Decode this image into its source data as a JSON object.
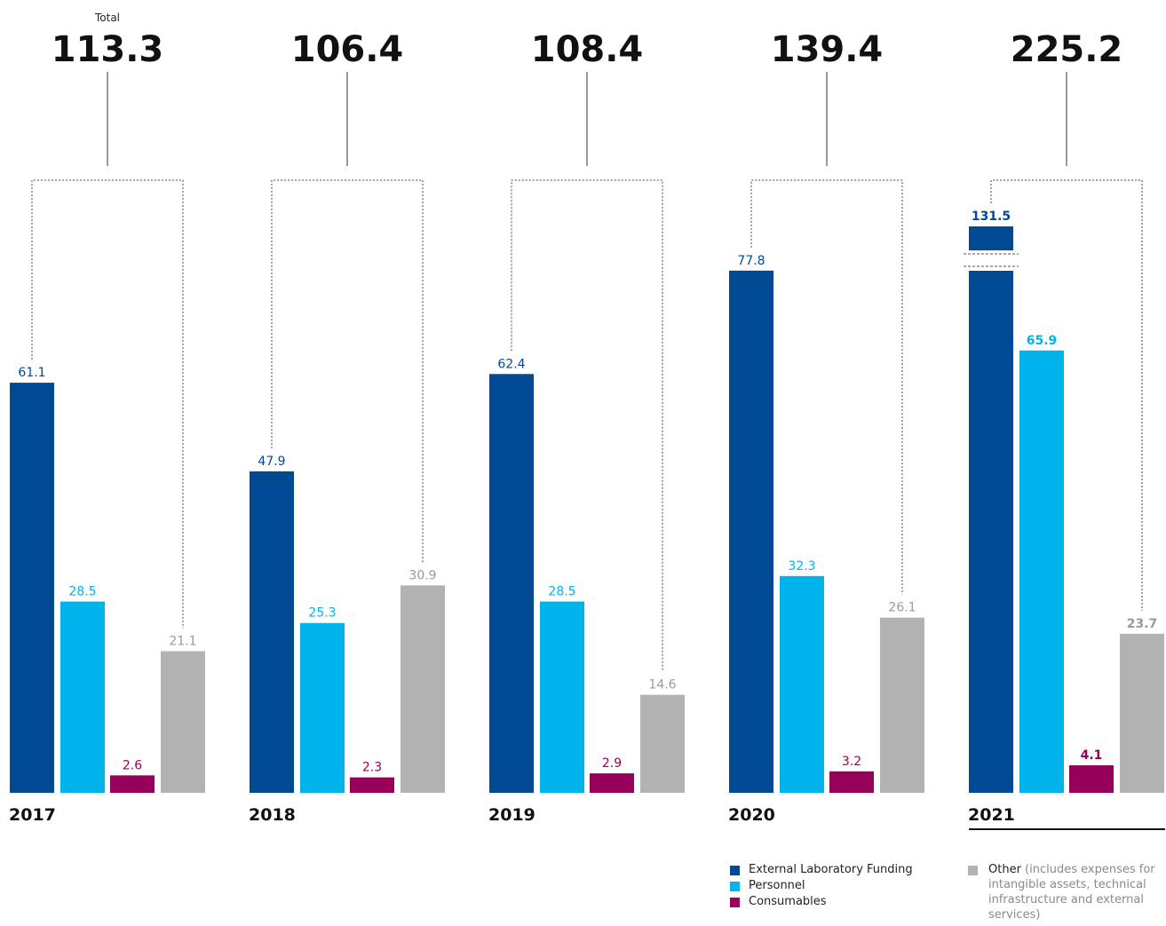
{
  "chart_data": {
    "type": "bar",
    "total_label": "Total",
    "categories": [
      "2017",
      "2018",
      "2019",
      "2020",
      "2021"
    ],
    "totals": [
      "113.3",
      "106.4",
      "108.4",
      "139.4",
      "225.2"
    ],
    "series": [
      {
        "name": "External Laboratory Funding",
        "color": "#004a94",
        "values": [
          61.1,
          47.9,
          62.4,
          77.8,
          131.5
        ]
      },
      {
        "name": "Personnel",
        "color": "#00b4eb",
        "values": [
          28.5,
          25.3,
          28.5,
          32.3,
          65.9
        ]
      },
      {
        "name": "Consumables",
        "color": "#97005a",
        "values": [
          2.6,
          2.3,
          2.9,
          3.2,
          4.1
        ]
      },
      {
        "name": "Other",
        "color": "#b2b2b2",
        "values": [
          21.1,
          30.9,
          14.6,
          26.1,
          23.7
        ]
      }
    ],
    "value_labels": [
      [
        "61.1",
        "28.5",
        "2.6",
        "21.1"
      ],
      [
        "47.9",
        "25.3",
        "2.3",
        "30.9"
      ],
      [
        "62.4",
        "28.5",
        "2.9",
        "14.6"
      ],
      [
        "77.8",
        "32.3",
        "3.2",
        "26.1"
      ],
      [
        "131.5",
        "65.9",
        "4.1",
        "23.7"
      ]
    ],
    "highlight_year": "2021",
    "axis_break": {
      "year": "2021",
      "series": "External Laboratory Funding"
    },
    "ylim": [
      0,
      80
    ],
    "grid": false,
    "legend_position": "bottom-right"
  },
  "legend": {
    "items": [
      {
        "label": "External Laboratory Funding",
        "color": "#004a94"
      },
      {
        "label": "Personnel",
        "color": "#00b4eb"
      },
      {
        "label": "Consumables",
        "color": "#97005a"
      }
    ],
    "other": {
      "label": "Other",
      "note": " (includes expenses for intangible assets, technical infrastructure and external services)",
      "color": "#b2b2b2"
    }
  }
}
